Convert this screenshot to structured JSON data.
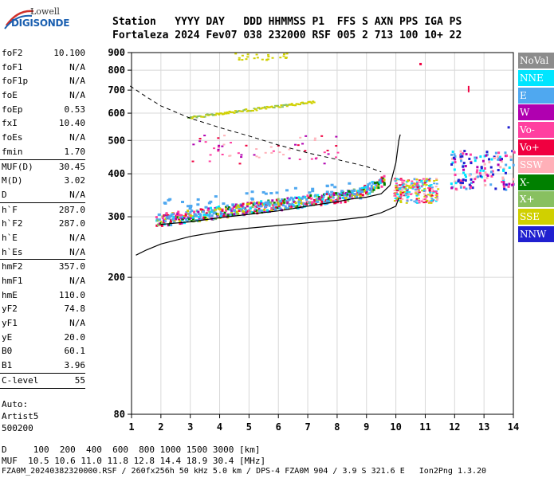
{
  "logo": {
    "top": "Lowell",
    "bottom": "DIGISONDE"
  },
  "header": {
    "line1": "Station   YYYY DAY   DDD HHMMSS P1  FFS S AXN PPS IGA PS",
    "line2": "Fortaleza 2024 Fev07 038 232000 RSF 005 2 713 100 10+ 22"
  },
  "params": {
    "group1": [
      {
        "name": "foF2",
        "value": "10.100"
      },
      {
        "name": "foF1",
        "value": "N/A"
      },
      {
        "name": "foF1p",
        "value": "N/A"
      },
      {
        "name": "foE",
        "value": "N/A"
      },
      {
        "name": "foEp",
        "value": "0.53"
      },
      {
        "name": "fxI",
        "value": "10.40"
      },
      {
        "name": "foEs",
        "value": "N/A"
      },
      {
        "name": "fmin",
        "value": "1.70"
      }
    ],
    "group2": [
      {
        "name": "MUF(D)",
        "value": "30.45"
      },
      {
        "name": "M(D)",
        "value": "3.02"
      },
      {
        "name": "D",
        "value": "N/A"
      }
    ],
    "group3": [
      {
        "name": "h`F",
        "value": "287.0"
      },
      {
        "name": "h`F2",
        "value": "287.0"
      },
      {
        "name": "h`E",
        "value": "N/A"
      },
      {
        "name": "h`Es",
        "value": "N/A"
      }
    ],
    "group4": [
      {
        "name": "hmF2",
        "value": "357.0"
      },
      {
        "name": "hmF1",
        "value": "N/A"
      },
      {
        "name": "hmE",
        "value": "110.0"
      },
      {
        "name": "yF2",
        "value": "74.8"
      },
      {
        "name": "yF1",
        "value": "N/A"
      },
      {
        "name": "yE",
        "value": "20.0"
      },
      {
        "name": "B0",
        "value": "60.1"
      },
      {
        "name": "B1",
        "value": "3.96"
      }
    ],
    "group5": [
      {
        "name": "C-level",
        "value": "55"
      }
    ],
    "auto_lines": [
      "Auto:",
      "Artist5",
      "500200"
    ]
  },
  "legend": [
    {
      "label": "NoVal",
      "color": "#8c8c8c"
    },
    {
      "label": "NNE",
      "color": "#00e5ff"
    },
    {
      "label": "E",
      "color": "#4fa8f0"
    },
    {
      "label": "W",
      "color": "#b000b0"
    },
    {
      "label": "Vo-",
      "color": "#ff40a0"
    },
    {
      "label": "Vo+",
      "color": "#f00040"
    },
    {
      "label": "SSW",
      "color": "#ffb0b8"
    },
    {
      "label": "X-",
      "color": "#008000"
    },
    {
      "label": "X+",
      "color": "#88c060"
    },
    {
      "label": "SSE",
      "color": "#d0d000"
    },
    {
      "label": "NNW",
      "color": "#2020d0"
    }
  ],
  "chart_data": {
    "type": "scatter",
    "xlim": [
      1,
      14
    ],
    "ylim": [
      80,
      900
    ],
    "y_scale": "log",
    "x_ticks": [
      "1",
      "2",
      "3",
      "4",
      "5",
      "6",
      "7",
      "8",
      "9",
      "10",
      "11",
      "12",
      "13",
      "14"
    ],
    "y_ticks": [
      "80",
      "200",
      "300",
      "400",
      "500",
      "600",
      "700",
      "800",
      "900"
    ],
    "grid": true,
    "muf_curve": [
      [
        0.95,
        720
      ],
      [
        1.5,
        670
      ],
      [
        2,
        630
      ],
      [
        3,
        580
      ],
      [
        4,
        545
      ],
      [
        5,
        515
      ],
      [
        6,
        485
      ],
      [
        7,
        460
      ],
      [
        8,
        440
      ],
      [
        9,
        420
      ],
      [
        9.5,
        405
      ]
    ],
    "virtual_height_profile": [
      [
        2,
        285
      ],
      [
        3,
        290
      ],
      [
        4,
        298
      ],
      [
        5,
        305
      ],
      [
        6,
        312
      ],
      [
        7,
        322
      ],
      [
        8,
        332
      ],
      [
        8.5,
        338
      ],
      [
        9,
        342
      ],
      [
        9.5,
        350
      ],
      [
        9.8,
        370
      ],
      [
        10,
        430
      ],
      [
        10.1,
        500
      ],
      [
        10.15,
        520
      ]
    ],
    "true_height_profile": [
      [
        1.15,
        232
      ],
      [
        1.5,
        240
      ],
      [
        2,
        250
      ],
      [
        3,
        263
      ],
      [
        4,
        272
      ],
      [
        5,
        278
      ],
      [
        6,
        283
      ],
      [
        7,
        288
      ],
      [
        8,
        293
      ],
      [
        9,
        300
      ],
      [
        9.5,
        308
      ],
      [
        10,
        322
      ],
      [
        10.1,
        340
      ]
    ]
  },
  "bottom": {
    "line1": "D     100  200  400  600  800 1000 1500 3000 [km]",
    "line2": "MUF  10.5 10.6 11.0 11.8 12.8 14.4 18.9 30.4 [MHz]",
    "line3": "FZA0M_20240382320000.RSF / 260fx256h 50 kHz 5.0 km / DPS-4 FZA0M 904 / 3.9 S 321.6 E   Ion2Png 1.3.20"
  }
}
